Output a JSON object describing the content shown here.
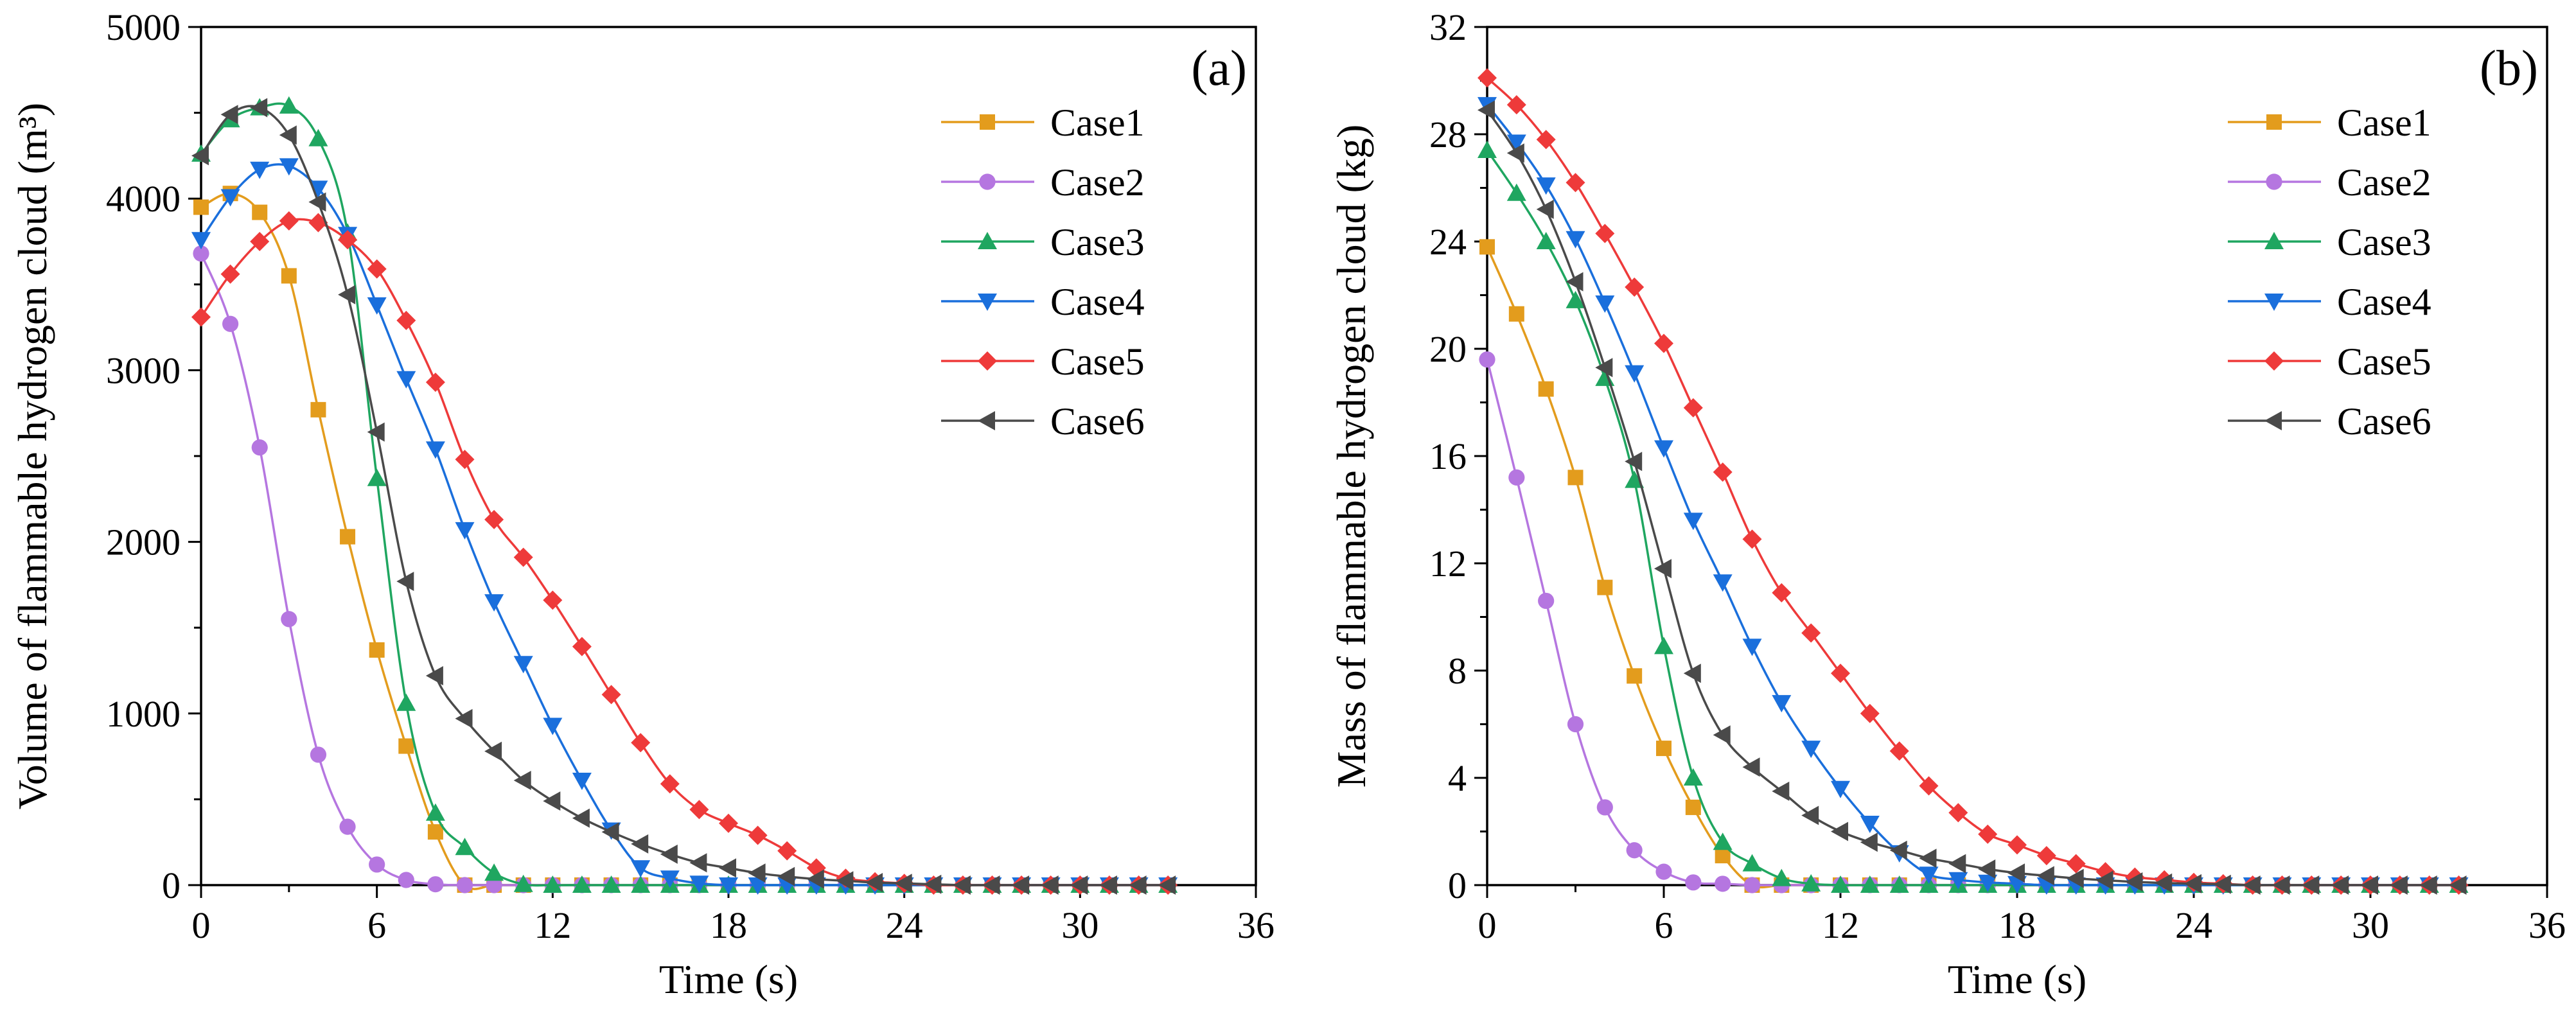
{
  "chart_data": [
    {
      "type": "line",
      "panel_label": "(a)",
      "xlabel": "Time (s)",
      "ylabel": "Volume of flammable hydrogen cloud (m³)",
      "xlim": [
        0,
        36
      ],
      "ylim": [
        0,
        5000
      ],
      "xticks": [
        0,
        6,
        12,
        18,
        24,
        30,
        36
      ],
      "yticks": [
        0,
        1000,
        2000,
        3000,
        4000,
        5000
      ],
      "legend_position": "top-right",
      "x": [
        0,
        1,
        2,
        3,
        4,
        5,
        6,
        7,
        8,
        9,
        10,
        11,
        12,
        13,
        14,
        15,
        16,
        17,
        18,
        19,
        20,
        21,
        22,
        23,
        24,
        25,
        26,
        27,
        28,
        29,
        30,
        31,
        32,
        33
      ],
      "series": [
        {
          "name": "Case1",
          "color": "#E39C1D",
          "marker": "square",
          "values": [
            3950,
            4030,
            3920,
            3550,
            2770,
            2030,
            1370,
            810,
            310,
            0,
            0,
            0,
            0,
            0,
            0,
            0,
            0,
            0,
            0,
            0,
            0,
            0,
            0,
            0,
            0,
            0,
            0,
            0,
            0,
            0,
            0,
            0,
            0,
            0
          ]
        },
        {
          "name": "Case2",
          "color": "#B576E0",
          "marker": "circle",
          "values": [
            3680,
            3270,
            2550,
            1550,
            760,
            340,
            120,
            30,
            5,
            0,
            0,
            0,
            0,
            0,
            0,
            0,
            0,
            0,
            0,
            0,
            0,
            0,
            0,
            0,
            0,
            0,
            0,
            0,
            0,
            0,
            0,
            0,
            0,
            0
          ]
        },
        {
          "name": "Case3",
          "color": "#1FA660",
          "marker": "triangle-up",
          "values": [
            4260,
            4460,
            4530,
            4540,
            4350,
            3800,
            2370,
            1060,
            420,
            220,
            70,
            5,
            0,
            0,
            0,
            0,
            0,
            0,
            0,
            0,
            0,
            0,
            0,
            0,
            0,
            0,
            0,
            0,
            0,
            0,
            0,
            0,
            0,
            0
          ]
        },
        {
          "name": "Case4",
          "color": "#1A6FDC",
          "marker": "triangle-down",
          "values": [
            3760,
            4010,
            4170,
            4190,
            4060,
            3790,
            3380,
            2950,
            2540,
            2070,
            1650,
            1290,
            930,
            610,
            320,
            100,
            40,
            10,
            0,
            0,
            0,
            0,
            0,
            0,
            0,
            0,
            0,
            0,
            0,
            0,
            0,
            0,
            0,
            0
          ]
        },
        {
          "name": "Case5",
          "color": "#EE3A3A",
          "marker": "diamond",
          "values": [
            3310,
            3560,
            3750,
            3870,
            3860,
            3760,
            3590,
            3290,
            2930,
            2480,
            2130,
            1910,
            1660,
            1390,
            1110,
            830,
            590,
            440,
            360,
            290,
            200,
            100,
            40,
            20,
            10,
            0,
            0,
            0,
            0,
            0,
            0,
            0,
            0,
            0
          ]
        },
        {
          "name": "Case6",
          "color": "#4A4A4A",
          "marker": "triangle-left",
          "values": [
            4250,
            4490,
            4530,
            4370,
            3980,
            3440,
            2640,
            1770,
            1220,
            970,
            780,
            610,
            490,
            390,
            310,
            240,
            180,
            130,
            100,
            70,
            50,
            35,
            25,
            15,
            10,
            5,
            0,
            0,
            0,
            0,
            0,
            0,
            0,
            0
          ]
        }
      ]
    },
    {
      "type": "line",
      "panel_label": "(b)",
      "xlabel": "Time (s)",
      "ylabel": "Mass of flammable hydrogen cloud (kg)",
      "xlim": [
        0,
        36
      ],
      "ylim": [
        0,
        32
      ],
      "xticks": [
        0,
        6,
        12,
        18,
        24,
        30,
        36
      ],
      "yticks": [
        0,
        4,
        8,
        12,
        16,
        20,
        24,
        28,
        32
      ],
      "legend_position": "top-right",
      "x": [
        0,
        1,
        2,
        3,
        4,
        5,
        6,
        7,
        8,
        9,
        10,
        11,
        12,
        13,
        14,
        15,
        16,
        17,
        18,
        19,
        20,
        21,
        22,
        23,
        24,
        25,
        26,
        27,
        28,
        29,
        30,
        31,
        32,
        33
      ],
      "series": [
        {
          "name": "Case1",
          "color": "#E39C1D",
          "marker": "square",
          "values": [
            23.8,
            21.3,
            18.5,
            15.2,
            11.1,
            7.8,
            5.1,
            2.9,
            1.1,
            0,
            0,
            0,
            0,
            0,
            0,
            0,
            0,
            0,
            0,
            0,
            0,
            0,
            0,
            0,
            0,
            0,
            0,
            0,
            0,
            0,
            0,
            0,
            0,
            0
          ]
        },
        {
          "name": "Case2",
          "color": "#B576E0",
          "marker": "circle",
          "values": [
            19.6,
            15.2,
            10.6,
            6.0,
            2.9,
            1.3,
            0.5,
            0.1,
            0.05,
            0,
            0,
            0,
            0,
            0,
            0,
            0,
            0,
            0,
            0,
            0,
            0,
            0,
            0,
            0,
            0,
            0,
            0,
            0,
            0,
            0,
            0,
            0,
            0,
            0
          ]
        },
        {
          "name": "Case3",
          "color": "#1FA660",
          "marker": "triangle-up",
          "values": [
            27.4,
            25.8,
            24.0,
            21.8,
            18.9,
            15.1,
            8.9,
            4.0,
            1.6,
            0.8,
            0.25,
            0.05,
            0,
            0,
            0,
            0,
            0,
            0,
            0,
            0,
            0,
            0,
            0,
            0,
            0,
            0,
            0,
            0,
            0,
            0,
            0,
            0,
            0,
            0
          ]
        },
        {
          "name": "Case4",
          "color": "#1A6FDC",
          "marker": "triangle-down",
          "values": [
            29.1,
            27.7,
            26.1,
            24.1,
            21.7,
            19.1,
            16.3,
            13.6,
            11.3,
            8.9,
            6.8,
            5.1,
            3.6,
            2.3,
            1.2,
            0.4,
            0.2,
            0.1,
            0.05,
            0,
            0,
            0,
            0,
            0,
            0,
            0,
            0,
            0,
            0,
            0,
            0,
            0,
            0,
            0
          ]
        },
        {
          "name": "Case5",
          "color": "#EE3A3A",
          "marker": "diamond",
          "values": [
            30.1,
            29.1,
            27.8,
            26.2,
            24.3,
            22.3,
            20.2,
            17.8,
            15.4,
            12.9,
            10.9,
            9.4,
            7.9,
            6.4,
            5.0,
            3.7,
            2.7,
            1.9,
            1.5,
            1.1,
            0.8,
            0.5,
            0.3,
            0.2,
            0.1,
            0.05,
            0,
            0,
            0,
            0,
            0,
            0,
            0,
            0
          ]
        },
        {
          "name": "Case6",
          "color": "#4A4A4A",
          "marker": "triangle-left",
          "values": [
            28.9,
            27.3,
            25.2,
            22.5,
            19.3,
            15.8,
            11.8,
            7.9,
            5.6,
            4.4,
            3.5,
            2.6,
            2.0,
            1.6,
            1.3,
            1.0,
            0.8,
            0.6,
            0.45,
            0.35,
            0.25,
            0.18,
            0.12,
            0.08,
            0.05,
            0.03,
            0,
            0,
            0,
            0,
            0,
            0,
            0,
            0
          ]
        }
      ]
    }
  ]
}
